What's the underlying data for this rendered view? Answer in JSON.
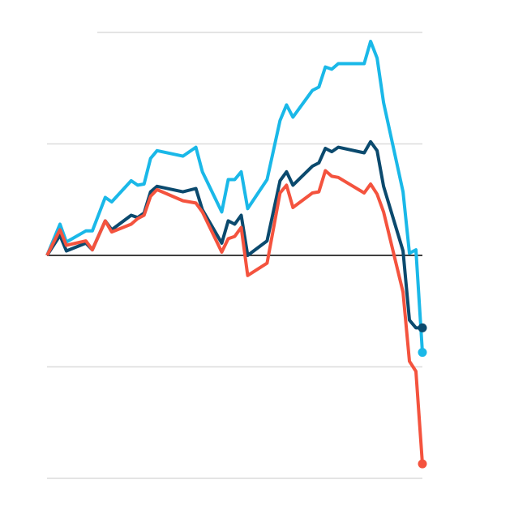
{
  "chart_data": {
    "type": "line",
    "x": [
      0,
      2,
      3,
      6,
      7,
      9,
      10,
      13,
      14,
      15,
      16,
      17,
      21,
      23,
      24,
      27,
      28,
      29,
      30,
      31,
      34,
      36,
      37,
      38,
      41,
      42,
      43,
      44,
      45,
      49,
      50,
      51,
      52,
      55,
      56,
      57,
      58
    ],
    "xlim": [
      0,
      58
    ],
    "ylim": [
      -2,
      2
    ],
    "yticks": [
      -2,
      -1,
      0,
      1,
      2
    ],
    "grid": true,
    "series": [
      {
        "color": "#1ab8e8",
        "values": [
          0,
          0.28,
          0.12,
          0.22,
          0.22,
          0.52,
          0.48,
          0.67,
          0.63,
          0.64,
          0.87,
          0.94,
          0.89,
          0.97,
          0.75,
          0.39,
          0.68,
          0.68,
          0.75,
          0.42,
          0.68,
          1.21,
          1.35,
          1.24,
          1.48,
          1.51,
          1.69,
          1.67,
          1.72,
          1.72,
          1.92,
          1.77,
          1.37,
          0.57,
          0.02,
          0.05,
          -0.87
        ]
      },
      {
        "color": "#0b4a6e",
        "values": [
          0,
          0.18,
          0.04,
          0.11,
          0.05,
          0.31,
          0.23,
          0.36,
          0.34,
          0.38,
          0.57,
          0.62,
          0.57,
          0.6,
          0.41,
          0.11,
          0.31,
          0.28,
          0.36,
          0,
          0.13,
          0.67,
          0.75,
          0.63,
          0.8,
          0.83,
          0.96,
          0.93,
          0.97,
          0.92,
          1.02,
          0.94,
          0.62,
          0.04,
          -0.58,
          -0.65,
          -0.65
        ]
      },
      {
        "color": "#f4533e",
        "values": [
          0,
          0.23,
          0.09,
          0.13,
          0.05,
          0.31,
          0.21,
          0.28,
          0.33,
          0.36,
          0.53,
          0.59,
          0.49,
          0.47,
          0.39,
          0.03,
          0.15,
          0.17,
          0.25,
          -0.18,
          -0.07,
          0.56,
          0.63,
          0.43,
          0.56,
          0.57,
          0.76,
          0.71,
          0.7,
          0.56,
          0.64,
          0.55,
          0.39,
          -0.33,
          -0.95,
          -1.04,
          -1.87
        ]
      }
    ]
  }
}
